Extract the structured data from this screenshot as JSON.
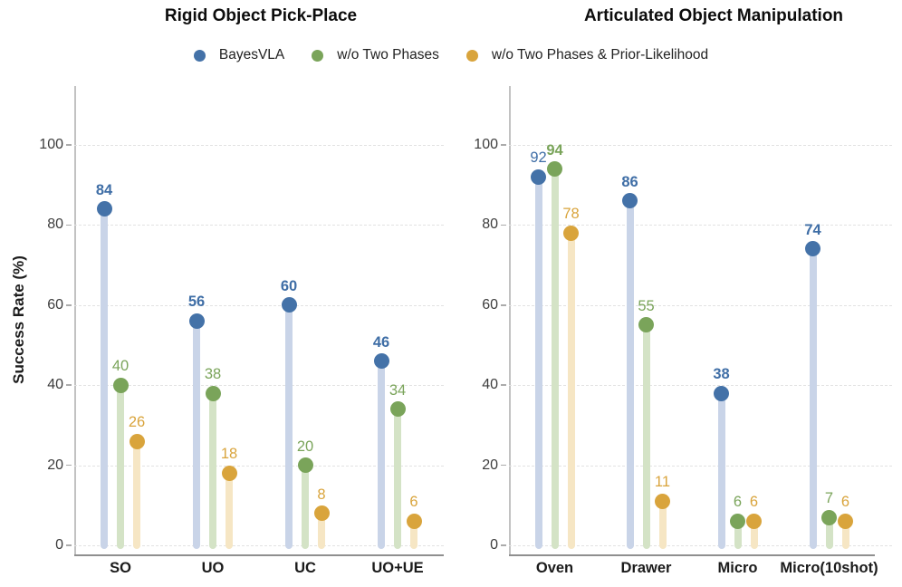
{
  "ylabel": "Success Rate (%)",
  "legend": {
    "position": "top-center",
    "items": [
      {
        "label": "BayesVLA",
        "color": "#4472a8"
      },
      {
        "label": "w/o Two Phases",
        "color": "#7aa45a"
      },
      {
        "label": "w/o Two Phases & Prior-Likelihood",
        "color": "#d9a43c"
      }
    ]
  },
  "chart_data": [
    {
      "type": "bar",
      "variant": "lollipop",
      "title": "Rigid Object Pick-Place",
      "categories": [
        "SO",
        "UO",
        "UC",
        "UO+UE"
      ],
      "series": [
        {
          "name": "BayesVLA",
          "values": [
            84,
            56,
            60,
            46
          ],
          "dot_color": "#4472a8",
          "stem_color": "#c9d4e8",
          "label_color": "#3f6ea6"
        },
        {
          "name": "w/o Two Phases",
          "values": [
            40,
            38,
            20,
            34
          ],
          "dot_color": "#7aa45a",
          "stem_color": "#d4e3c6",
          "label_color": "#7aa45a"
        },
        {
          "name": "w/o Two Phases & Prior-Likelihood",
          "values": [
            26,
            18,
            8,
            6
          ],
          "dot_color": "#d9a43c",
          "stem_color": "#f6e6c4",
          "label_color": "#d9a43c"
        }
      ],
      "ylabel": "Success Rate (%)",
      "yticks": [
        0,
        20,
        40,
        60,
        80,
        100
      ],
      "ylim": [
        0,
        115
      ],
      "grid": "dashed-horizontal",
      "value_label_rule": "max-in-group-bold"
    },
    {
      "type": "bar",
      "variant": "lollipop",
      "title": "Articulated Object Manipulation",
      "categories": [
        "Oven",
        "Drawer",
        "Micro",
        "Micro(10shot)"
      ],
      "series": [
        {
          "name": "BayesVLA",
          "values": [
            92,
            86,
            38,
            74
          ],
          "dot_color": "#4472a8",
          "stem_color": "#c9d4e8",
          "label_color": "#3f6ea6"
        },
        {
          "name": "w/o Two Phases",
          "values": [
            94,
            55,
            6,
            7
          ],
          "dot_color": "#7aa45a",
          "stem_color": "#d4e3c6",
          "label_color": "#7aa45a"
        },
        {
          "name": "w/o Two Phases & Prior-Likelihood",
          "values": [
            78,
            11,
            6,
            6
          ],
          "dot_color": "#d9a43c",
          "stem_color": "#f6e6c4",
          "label_color": "#d9a43c"
        }
      ],
      "ylabel": "",
      "yticks": [
        0,
        20,
        40,
        60,
        80,
        100
      ],
      "ylim": [
        0,
        115
      ],
      "grid": "dashed-horizontal",
      "value_label_rule": "max-in-group-bold"
    }
  ]
}
